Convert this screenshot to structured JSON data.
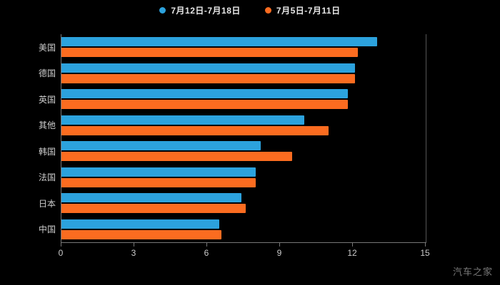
{
  "watermark": "汽车之家",
  "chart_data": {
    "type": "bar",
    "orientation": "horizontal",
    "title": "",
    "background": "#000000",
    "categories": [
      "美国",
      "德国",
      "英国",
      "其他",
      "韩国",
      "法国",
      "日本",
      "中国"
    ],
    "series": [
      {
        "name": "7月12日-7月18日",
        "color": "#2CA2DD",
        "values": [
          13,
          12.1,
          11.8,
          10,
          8.2,
          8,
          7.4,
          6.5
        ]
      },
      {
        "name": "7月5日-7月11日",
        "color": "#FB6C20",
        "values": [
          12.2,
          12.1,
          11.8,
          11,
          9.5,
          8,
          7.6,
          6.6
        ]
      }
    ],
    "xlim": [
      0,
      15
    ],
    "xticks": [
      0,
      3,
      6,
      9,
      12,
      15
    ],
    "legend_position": "top",
    "grid": false,
    "axis_color": "#777777",
    "label_color": "#cccccc"
  }
}
